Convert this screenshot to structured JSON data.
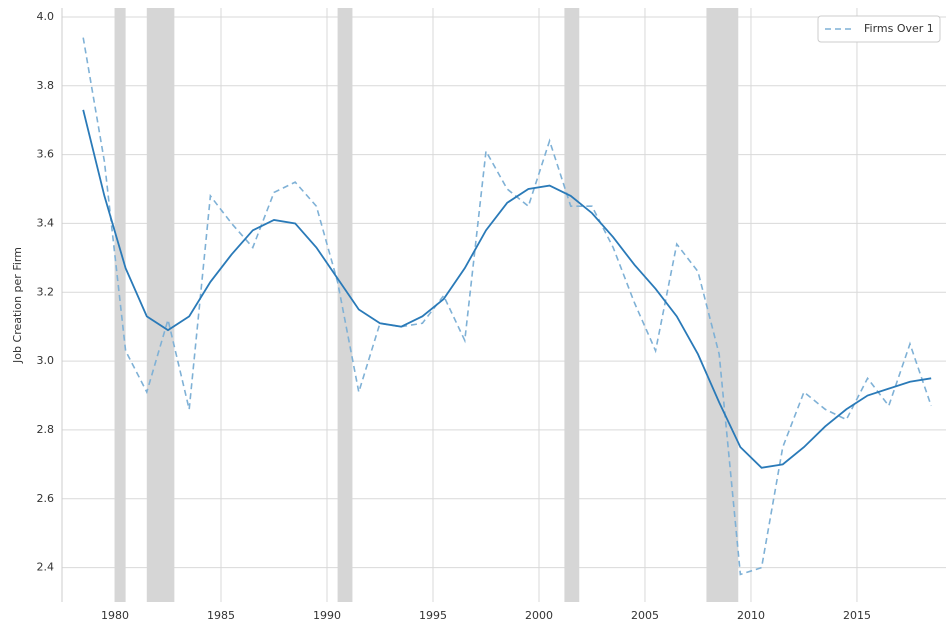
{
  "chart_data": {
    "type": "line",
    "y_label": "Job Creation per Firm",
    "x": [
      1978.5,
      1979.5,
      1980.5,
      1981.5,
      1982.5,
      1983.5,
      1984.5,
      1985.5,
      1986.5,
      1987.5,
      1988.5,
      1989.5,
      1990.5,
      1991.5,
      1992.5,
      1993.5,
      1994.5,
      1995.5,
      1996.5,
      1997.5,
      1998.5,
      1999.5,
      2000.5,
      2001.5,
      2002.5,
      2003.5,
      2004.5,
      2005.5,
      2006.5,
      2007.5,
      2008.5,
      2009.5,
      2010.5,
      2011.5,
      2012.5,
      2013.5,
      2014.5,
      2015.5,
      2016.5,
      2017.5,
      2018.5
    ],
    "series": [
      {
        "name": "Firms Over 1",
        "color": "#7fb1d6",
        "dashed": true,
        "values": [
          3.94,
          3.58,
          3.03,
          2.91,
          3.12,
          2.86,
          3.48,
          3.4,
          3.33,
          3.49,
          3.52,
          3.45,
          3.23,
          2.91,
          3.11,
          3.1,
          3.11,
          3.19,
          3.06,
          3.61,
          3.5,
          3.45,
          3.64,
          3.45,
          3.45,
          3.33,
          3.17,
          3.03,
          3.34,
          3.26,
          3.02,
          2.38,
          2.4,
          2.75,
          2.91,
          2.86,
          2.83,
          2.95,
          2.87,
          3.05,
          2.87
        ]
      },
      {
        "color": "#2a7ab8",
        "dashed": false,
        "values": [
          3.73,
          3.48,
          3.27,
          3.13,
          3.09,
          3.13,
          3.23,
          3.31,
          3.38,
          3.41,
          3.4,
          3.33,
          3.24,
          3.15,
          3.11,
          3.1,
          3.13,
          3.18,
          3.27,
          3.38,
          3.46,
          3.5,
          3.51,
          3.48,
          3.43,
          3.36,
          3.28,
          3.21,
          3.13,
          3.02,
          2.88,
          2.75,
          2.69,
          2.7,
          2.75,
          2.81,
          2.86,
          2.9,
          2.92,
          2.94,
          2.95
        ]
      }
    ],
    "shaded_regions": [
      [
        1980.0,
        1980.5
      ],
      [
        1981.5,
        1982.8
      ],
      [
        1990.5,
        1991.2
      ],
      [
        2001.2,
        2001.9
      ],
      [
        2007.9,
        2009.4
      ]
    ],
    "shade_color": "#d6d6d6",
    "xlim": [
      1977.5,
      2019.2
    ],
    "xticks": [
      1980,
      1985,
      1990,
      1995,
      2000,
      2005,
      2010,
      2015
    ],
    "ylim": [
      2.3,
      4.026
    ],
    "yticks": [
      2.4,
      2.6,
      2.8,
      {
        "value": 3.0,
        "label": "3.0"
      },
      3.2,
      3.4,
      3.6,
      3.8,
      {
        "value": 4.0,
        "label": "4.0"
      }
    ],
    "grid": true,
    "legend": "upper right"
  }
}
